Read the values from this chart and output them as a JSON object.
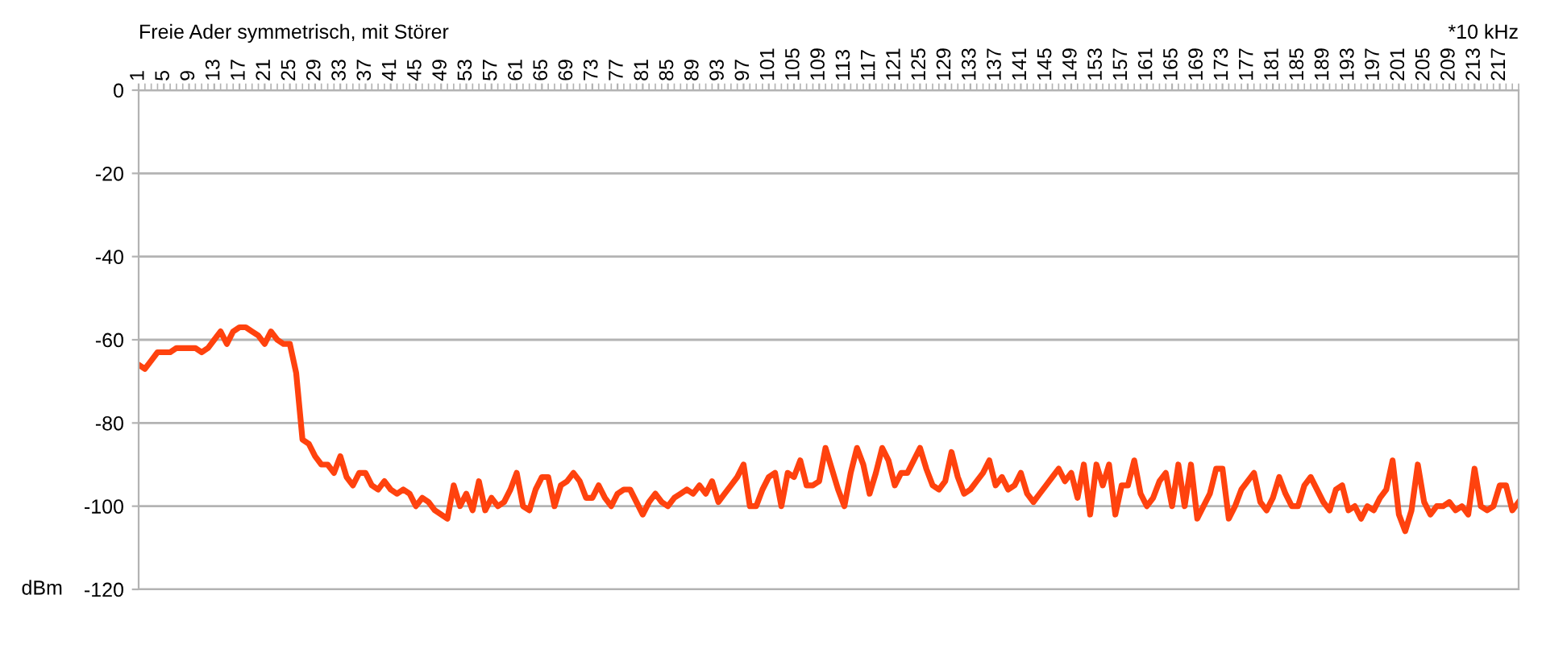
{
  "chart_data": {
    "type": "line",
    "title": "Freie Ader symmetrisch, mit Störer",
    "xlabel": "*10 kHz",
    "ylabel": "dBm",
    "categories": [
      "1",
      null,
      null,
      null,
      "5",
      null,
      null,
      null,
      "9",
      null,
      null,
      null,
      "13",
      null,
      null,
      null,
      "17",
      null,
      null,
      null,
      "21",
      null,
      null,
      null,
      "25",
      null,
      null,
      null,
      "29",
      null,
      null,
      null,
      "33",
      null,
      null,
      null,
      "37",
      null,
      null,
      null,
      "41",
      null,
      null,
      null,
      "45",
      null,
      null,
      null,
      "49",
      null,
      null,
      null,
      "53",
      null,
      null,
      null,
      "57",
      null,
      null,
      null,
      "61",
      null,
      null,
      null,
      "65",
      null,
      null,
      null,
      "69",
      null,
      null,
      null,
      "73",
      null,
      null,
      null,
      "77",
      null,
      null,
      null,
      "81",
      null,
      null,
      null,
      "85",
      null,
      null,
      null,
      "89",
      null,
      null,
      null,
      "93",
      null,
      null,
      null,
      "97",
      null,
      null,
      null,
      "101",
      null,
      null,
      null,
      "105",
      null,
      null,
      null,
      "109",
      null,
      null,
      null,
      "113",
      null,
      null,
      null,
      "117",
      null,
      null,
      null,
      "121",
      null,
      null,
      null,
      "125",
      null,
      null,
      null,
      "129",
      null,
      null,
      null,
      "133",
      null,
      null,
      null,
      "137",
      null,
      null,
      null,
      "141",
      null,
      null,
      null,
      "145",
      null,
      null,
      null,
      "149",
      null,
      null,
      null,
      "153",
      null,
      null,
      null,
      "157",
      null,
      null,
      null,
      "161",
      null,
      null,
      null,
      "165",
      null,
      null,
      null,
      "169",
      null,
      null,
      null,
      "173",
      null,
      null,
      null,
      "177",
      null,
      null,
      null,
      "181",
      null,
      null,
      null,
      "185",
      null,
      null,
      null,
      "189",
      null,
      null,
      null,
      "193",
      null,
      null,
      null,
      "197",
      null,
      null,
      null,
      "201",
      null,
      null,
      null,
      "205",
      null,
      null,
      null,
      "209",
      null,
      null,
      null,
      "213",
      null,
      null,
      null,
      "217",
      null,
      null,
      null
    ],
    "series": [
      {
        "color": "#ff420e",
        "values": [
          -66,
          -67,
          -65,
          -63,
          -63,
          -63,
          -62,
          -62,
          -62,
          -62,
          -63,
          -62,
          -60,
          -58,
          -61,
          -58,
          -57,
          -57,
          -58,
          -59,
          -61,
          -58,
          -60,
          -61,
          -61,
          -68,
          -84,
          -85,
          -88,
          -90,
          -90,
          -92,
          -88,
          -93,
          -95,
          -92,
          -92,
          -95,
          -96,
          -94,
          -96,
          -97,
          -96,
          -97,
          -100,
          -98,
          -99,
          -101,
          -102,
          -103,
          -95,
          -100,
          -97,
          -101,
          -94,
          -101,
          -98,
          -100,
          -99,
          -96,
          -92,
          -100,
          -101,
          -96,
          -93,
          -93,
          -100,
          -95,
          -94,
          -92,
          -94,
          -98,
          -98,
          -95,
          -98,
          -100,
          -97,
          -96,
          -96,
          -99,
          -102,
          -99,
          -97,
          -99,
          -100,
          -98,
          -97,
          -96,
          -97,
          -95,
          -97,
          -94,
          -99,
          -97,
          -95,
          -93,
          -90,
          -100,
          -100,
          -96,
          -93,
          -92,
          -100,
          -92,
          -93,
          -89,
          -95,
          -95,
          -94,
          -86,
          -91,
          -96,
          -100,
          -92,
          -86,
          -90,
          -97,
          -92,
          -86,
          -89,
          -95,
          -92,
          -92,
          -89,
          -86,
          -91,
          -95,
          -96,
          -94,
          -87,
          -93,
          -97,
          -96,
          -94,
          -92,
          -89,
          -95,
          -93,
          -96,
          -95,
          -92,
          -97,
          -99,
          -97,
          -95,
          -93,
          -91,
          -94,
          -92,
          -98,
          -90,
          -102,
          -90,
          -95,
          -90,
          -102,
          -95,
          -95,
          -89,
          -97,
          -100,
          -98,
          -94,
          -92,
          -100,
          -90,
          -100,
          -90,
          -103,
          -100,
          -97,
          -91,
          -91,
          -103,
          -100,
          -96,
          -94,
          -92,
          -99,
          -101,
          -98,
          -93,
          -97,
          -100,
          -100,
          -95,
          -93,
          -96,
          -99,
          -101,
          -96,
          -95,
          -101,
          -100,
          -103,
          -100,
          -101,
          -98,
          -96,
          -89,
          -102,
          -106,
          -101,
          -90,
          -99,
          -102,
          -100,
          -100,
          -99,
          -101,
          -100,
          -102,
          -91,
          -100,
          -101,
          -100,
          -95,
          -95,
          -101,
          -99
        ]
      }
    ],
    "ylim": [
      -120,
      0
    ],
    "yticks": [
      0,
      -20,
      -40,
      -60,
      -80,
      -100,
      -120
    ],
    "grid": "y",
    "legend": false,
    "marker": "none",
    "line_style": "solid"
  }
}
